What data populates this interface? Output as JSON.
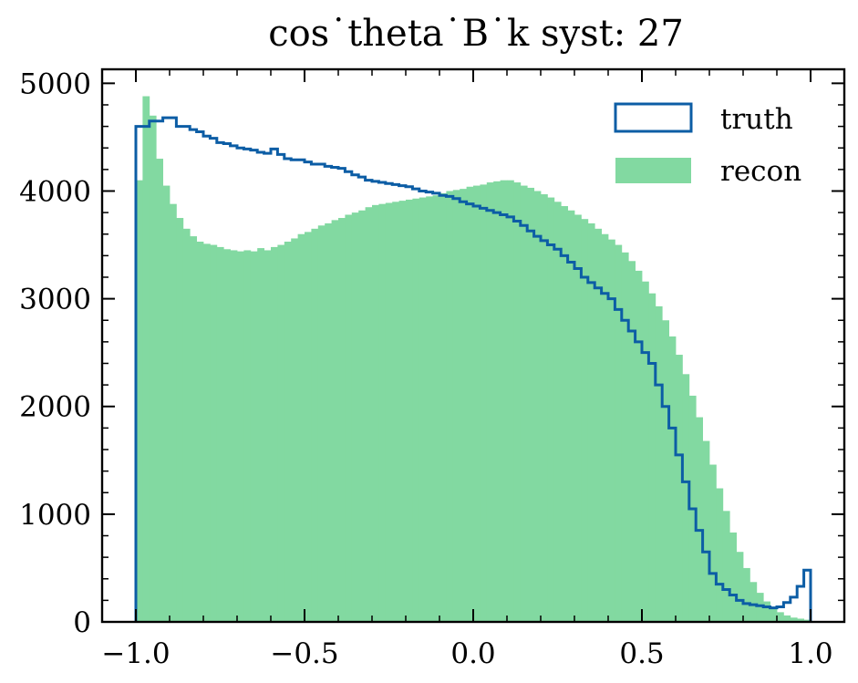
{
  "chart_data": {
    "type": "histogram",
    "title": "cos˙theta˙B˙k syst: 27",
    "xlabel": "",
    "ylabel": "",
    "xlim": [
      -1.1,
      1.1
    ],
    "ylim": [
      0,
      5130
    ],
    "x_ticks": [
      -1.0,
      -0.5,
      0.0,
      0.5,
      1.0
    ],
    "x_tick_labels": [
      "−1.0",
      "−0.5",
      "0.0",
      "0.5",
      "1.0"
    ],
    "y_ticks": [
      0,
      1000,
      2000,
      3000,
      4000,
      5000
    ],
    "y_tick_labels": [
      "0",
      "1000",
      "2000",
      "3000",
      "4000",
      "5000"
    ],
    "bin_range": [
      -1.0,
      1.0
    ],
    "bin_count": 100,
    "legend_position": "top-right",
    "grid": false,
    "series": [
      {
        "name": "truth",
        "style": "step",
        "color": "#0C5DA5",
        "values": [
          4600,
          4600,
          4650,
          4650,
          4680,
          4680,
          4600,
          4600,
          4570,
          4550,
          4510,
          4490,
          4450,
          4440,
          4420,
          4400,
          4390,
          4380,
          4360,
          4350,
          4390,
          4340,
          4300,
          4290,
          4290,
          4270,
          4250,
          4250,
          4230,
          4220,
          4210,
          4180,
          4150,
          4130,
          4100,
          4090,
          4080,
          4070,
          4060,
          4050,
          4040,
          4020,
          4000,
          3990,
          3980,
          3960,
          3950,
          3930,
          3900,
          3880,
          3860,
          3840,
          3820,
          3800,
          3780,
          3760,
          3720,
          3680,
          3630,
          3580,
          3540,
          3500,
          3460,
          3400,
          3340,
          3280,
          3200,
          3150,
          3100,
          3050,
          3000,
          2900,
          2800,
          2700,
          2600,
          2500,
          2400,
          2200,
          2000,
          1800,
          1550,
          1300,
          1050,
          850,
          650,
          450,
          350,
          300,
          250,
          200,
          170,
          160,
          150,
          140,
          130,
          140,
          180,
          230,
          330,
          480
        ]
      },
      {
        "name": "recon",
        "style": "filled",
        "color": "#82D9A1",
        "values": [
          4100,
          4880,
          4700,
          4300,
          4050,
          3880,
          3750,
          3650,
          3580,
          3530,
          3510,
          3500,
          3480,
          3460,
          3450,
          3440,
          3450,
          3440,
          3470,
          3450,
          3480,
          3500,
          3530,
          3560,
          3600,
          3620,
          3650,
          3680,
          3700,
          3730,
          3750,
          3780,
          3800,
          3820,
          3850,
          3870,
          3880,
          3890,
          3900,
          3910,
          3920,
          3930,
          3940,
          3950,
          3960,
          3980,
          4000,
          4010,
          4020,
          4040,
          4050,
          4060,
          4080,
          4090,
          4100,
          4100,
          4080,
          4050,
          4030,
          4000,
          3970,
          3940,
          3900,
          3860,
          3820,
          3780,
          3740,
          3700,
          3650,
          3600,
          3550,
          3500,
          3430,
          3350,
          3260,
          3160,
          3050,
          2930,
          2800,
          2650,
          2480,
          2300,
          2100,
          1900,
          1680,
          1460,
          1240,
          1030,
          830,
          650,
          500,
          370,
          270,
          190,
          130,
          90,
          60,
          40,
          30,
          20
        ]
      }
    ]
  }
}
